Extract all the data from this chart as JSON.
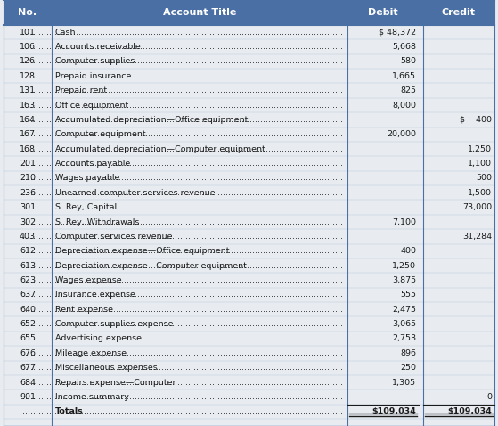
{
  "header": [
    "No.",
    "Account Title",
    "Debit",
    "Credit"
  ],
  "header_bg": "#4a6fa5",
  "header_text_color": "#ffffff",
  "row_bg": "#e8ecf0",
  "border_color": "#4a6fa5",
  "text_color": "#1a1a1a",
  "rows": [
    {
      "no": "101",
      "title": "Cash",
      "debit": "$ 48,372",
      "credit": ""
    },
    {
      "no": "106",
      "title": "Accounts receivable",
      "debit": "5,668",
      "credit": ""
    },
    {
      "no": "126",
      "title": "Computer supplies",
      "debit": "580",
      "credit": ""
    },
    {
      "no": "128",
      "title": "Prepaid insurance",
      "debit": "1,665",
      "credit": ""
    },
    {
      "no": "131",
      "title": "Prepaid rent",
      "debit": "825",
      "credit": ""
    },
    {
      "no": "163",
      "title": "Office equipment",
      "debit": "8,000",
      "credit": ""
    },
    {
      "no": "164",
      "title": "Accumulated depreciation—Office equipment",
      "debit": "",
      "credit": "$    400"
    },
    {
      "no": "167",
      "title": "Computer equipment",
      "debit": "20,000",
      "credit": ""
    },
    {
      "no": "168",
      "title": "Accumulated depreciation—Computer equipment",
      "debit": "",
      "credit": "1,250"
    },
    {
      "no": "201",
      "title": "Accounts payable",
      "debit": "",
      "credit": "1,100"
    },
    {
      "no": "210",
      "title": "Wages payable",
      "debit": "",
      "credit": "500"
    },
    {
      "no": "236",
      "title": "Unearned computer services revenue",
      "debit": "",
      "credit": "1,500"
    },
    {
      "no": "301",
      "title": "S. Rey, Capital",
      "debit": "",
      "credit": "73,000"
    },
    {
      "no": "302",
      "title": "S. Rey, Withdrawals",
      "debit": "7,100",
      "credit": ""
    },
    {
      "no": "403",
      "title": "Computer services revenue",
      "debit": "",
      "credit": "31,284"
    },
    {
      "no": "612",
      "title": "Depreciation expense—Office equipment",
      "debit": "400",
      "credit": ""
    },
    {
      "no": "613",
      "title": "Depreciation expense—Computer equipment",
      "debit": "1,250",
      "credit": ""
    },
    {
      "no": "623",
      "title": "Wages expense",
      "debit": "3,875",
      "credit": ""
    },
    {
      "no": "637",
      "title": "Insurance expense",
      "debit": "555",
      "credit": ""
    },
    {
      "no": "640",
      "title": "Rent expense",
      "debit": "2,475",
      "credit": ""
    },
    {
      "no": "652",
      "title": "Computer supplies expense",
      "debit": "3,065",
      "credit": ""
    },
    {
      "no": "655",
      "title": "Advertising expense",
      "debit": "2,753",
      "credit": ""
    },
    {
      "no": "676",
      "title": "Mileage expense",
      "debit": "896",
      "credit": ""
    },
    {
      "no": "677",
      "title": "Miscellaneous expenses",
      "debit": "250",
      "credit": ""
    },
    {
      "no": "684",
      "title": "Repairs expense—Computer",
      "debit": "1,305",
      "credit": ""
    },
    {
      "no": "901",
      "title": "Income summary",
      "debit": "",
      "credit": "0"
    },
    {
      "no": "",
      "title": "Totals",
      "debit": "$109,034",
      "credit": "$109,034"
    }
  ],
  "figsize": [
    5.59,
    4.78
  ],
  "dpi": 100
}
